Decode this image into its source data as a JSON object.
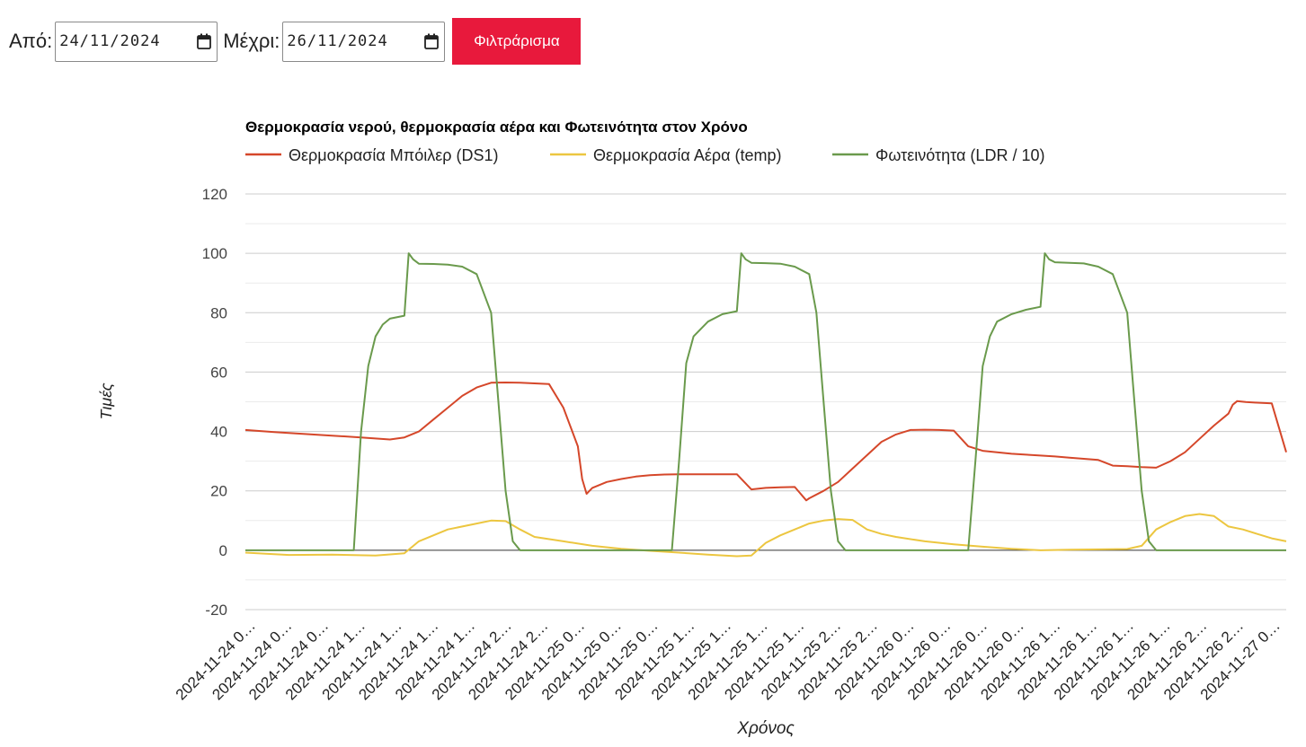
{
  "filter": {
    "from_label": "Από:",
    "from_value": "24/11/2024",
    "to_label": "Μέχρι:",
    "to_value": "26/11/2024",
    "button_label": "Φιλτράρισμα",
    "button_color": "#e8193c"
  },
  "chart_data": {
    "type": "line",
    "title": "Θερμοκρασία νερού, θερμοκρασία αέρα και Φωτεινότητα στον Χρόνο",
    "xlabel": "Χρόνος",
    "ylabel": "Τιμές",
    "ylim": [
      -20,
      120
    ],
    "yticks": [
      -20,
      0,
      20,
      40,
      60,
      80,
      100,
      120
    ],
    "xlim": [
      0,
      72
    ],
    "grid": true,
    "legend_position": "top-left",
    "x_tick_labels": [
      "2024-11-24 0…",
      "2024-11-24 0…",
      "2024-11-24 0…",
      "2024-11-24 1…",
      "2024-11-24 1…",
      "2024-11-24 1…",
      "2024-11-24 1…",
      "2024-11-24 2…",
      "2024-11-24 2…",
      "2024-11-25 0…",
      "2024-11-25 0…",
      "2024-11-25 0…",
      "2024-11-25 1…",
      "2024-11-25 1…",
      "2024-11-25 1…",
      "2024-11-25 1…",
      "2024-11-25 2…",
      "2024-11-25 2…",
      "2024-11-26 0…",
      "2024-11-26 0…",
      "2024-11-26 0…",
      "2024-11-26 0…",
      "2024-11-26 1…",
      "2024-11-26 1…",
      "2024-11-26 1…",
      "2024-11-26 1…",
      "2024-11-26 2…",
      "2024-11-26 2…",
      "2024-11-27 0…"
    ],
    "series": [
      {
        "name": "Θερμοκρασία Μπόιλερ (DS1)",
        "color": "#d5472a",
        "x": [
          0,
          2,
          4,
          6,
          8,
          10,
          11,
          12,
          13,
          14,
          15,
          16,
          17,
          18,
          19,
          20,
          21,
          22,
          23,
          23.3,
          23.6,
          23.8,
          24,
          25,
          26,
          27,
          28,
          29,
          30,
          31,
          32,
          33,
          34,
          35,
          36,
          37,
          38,
          38.5,
          38.8,
          39,
          40,
          41,
          42,
          43,
          44,
          45,
          46,
          47,
          48,
          49,
          50,
          51,
          52,
          53,
          54,
          55,
          56,
          57,
          58,
          59,
          60,
          61,
          62,
          63,
          64,
          65,
          66,
          67,
          68,
          68.3,
          68.6,
          68.9,
          69.2,
          70,
          71,
          72
        ],
        "y": [
          40.5,
          39.8,
          39.2,
          38.6,
          38.0,
          37.3,
          38.0,
          40.0,
          44.0,
          48.0,
          52.0,
          54.8,
          56.4,
          56.5,
          56.4,
          56.2,
          56.0,
          48.0,
          35.0,
          24.0,
          19.0,
          20.0,
          21.0,
          23.0,
          24.0,
          24.8,
          25.3,
          25.5,
          25.6,
          25.6,
          25.6,
          25.6,
          25.6,
          20.5,
          21.0,
          21.2,
          21.3,
          18.5,
          16.8,
          17.5,
          20.0,
          23.0,
          27.5,
          32.0,
          36.5,
          39.0,
          40.5,
          40.6,
          40.5,
          40.3,
          35.0,
          33.5,
          33.0,
          32.5,
          32.2,
          31.9,
          31.6,
          31.2,
          30.8,
          30.4,
          28.5,
          28.3,
          28.0,
          27.8,
          30.0,
          33.0,
          37.5,
          42.0,
          46.0,
          49.0,
          50.2,
          50.1,
          49.9,
          49.7,
          49.5,
          33.0
        ],
        "notes": ""
      },
      {
        "name": "Θερμοκρασία Αέρα (temp)",
        "color": "#ecc640",
        "x": [
          0,
          3,
          6,
          9,
          11,
          11.5,
          12,
          14,
          16,
          17,
          18,
          19,
          20,
          22,
          24,
          26,
          28,
          30,
          32,
          34,
          35,
          36,
          37,
          38,
          39,
          40,
          41,
          42,
          43,
          44,
          45,
          47,
          49,
          51,
          53,
          55,
          57,
          59,
          61,
          62,
          63,
          64,
          65,
          66,
          67,
          68,
          69,
          70,
          71,
          72
        ],
        "y": [
          -0.8,
          -1.6,
          -1.5,
          -1.8,
          -1.0,
          1.0,
          3.0,
          7.0,
          9.0,
          10.0,
          9.8,
          7.0,
          4.5,
          3.0,
          1.5,
          0.5,
          -0.2,
          -0.8,
          -1.5,
          -2.0,
          -1.8,
          2.5,
          5.0,
          7.0,
          9.0,
          10.0,
          10.5,
          10.2,
          7.0,
          5.5,
          4.5,
          3.0,
          2.0,
          1.2,
          0.5,
          0,
          0.2,
          0.3,
          0.4,
          1.5,
          7.0,
          9.5,
          11.5,
          12.2,
          11.5,
          8.0,
          7.0,
          5.5,
          4.0,
          3.0
        ],
        "notes": ""
      },
      {
        "name": "Φωτεινότητα (LDR / 10)",
        "color": "#6a9a4c",
        "x": [
          0,
          7.5,
          8,
          8.5,
          9,
          9.5,
          10,
          11,
          11.3,
          11.6,
          12,
          13,
          14,
          15,
          16,
          17,
          17.5,
          18,
          18.5,
          19,
          19.5,
          20,
          29.5,
          30,
          30.5,
          31,
          32,
          33,
          34,
          34.3,
          34.6,
          35,
          36,
          37,
          38,
          39,
          39.5,
          40,
          40.5,
          41,
          41.5,
          42,
          50,
          50.5,
          51,
          51.5,
          52,
          53,
          54,
          55,
          55.3,
          55.6,
          56,
          57,
          58,
          59,
          60,
          61,
          61.5,
          62,
          62.5,
          63,
          63.5,
          64,
          72
        ],
        "y": [
          0,
          0,
          40,
          62,
          72,
          76,
          78,
          79,
          100,
          98,
          96.5,
          96.4,
          96.2,
          95.5,
          93.0,
          80.0,
          50.0,
          20.0,
          3.0,
          0,
          0,
          0,
          0,
          30.0,
          63.0,
          72.0,
          77.0,
          79.5,
          80.5,
          100,
          98,
          96.8,
          96.7,
          96.5,
          95.5,
          93.0,
          80.0,
          50.0,
          20.0,
          3.0,
          0,
          0,
          0,
          30.0,
          62.0,
          72.0,
          77.0,
          79.5,
          81.0,
          82.0,
          100,
          98,
          97.0,
          96.8,
          96.6,
          95.5,
          93.0,
          80.0,
          50.0,
          20.0,
          3.0,
          0,
          0,
          0,
          0
        ],
        "notes": ""
      }
    ]
  }
}
